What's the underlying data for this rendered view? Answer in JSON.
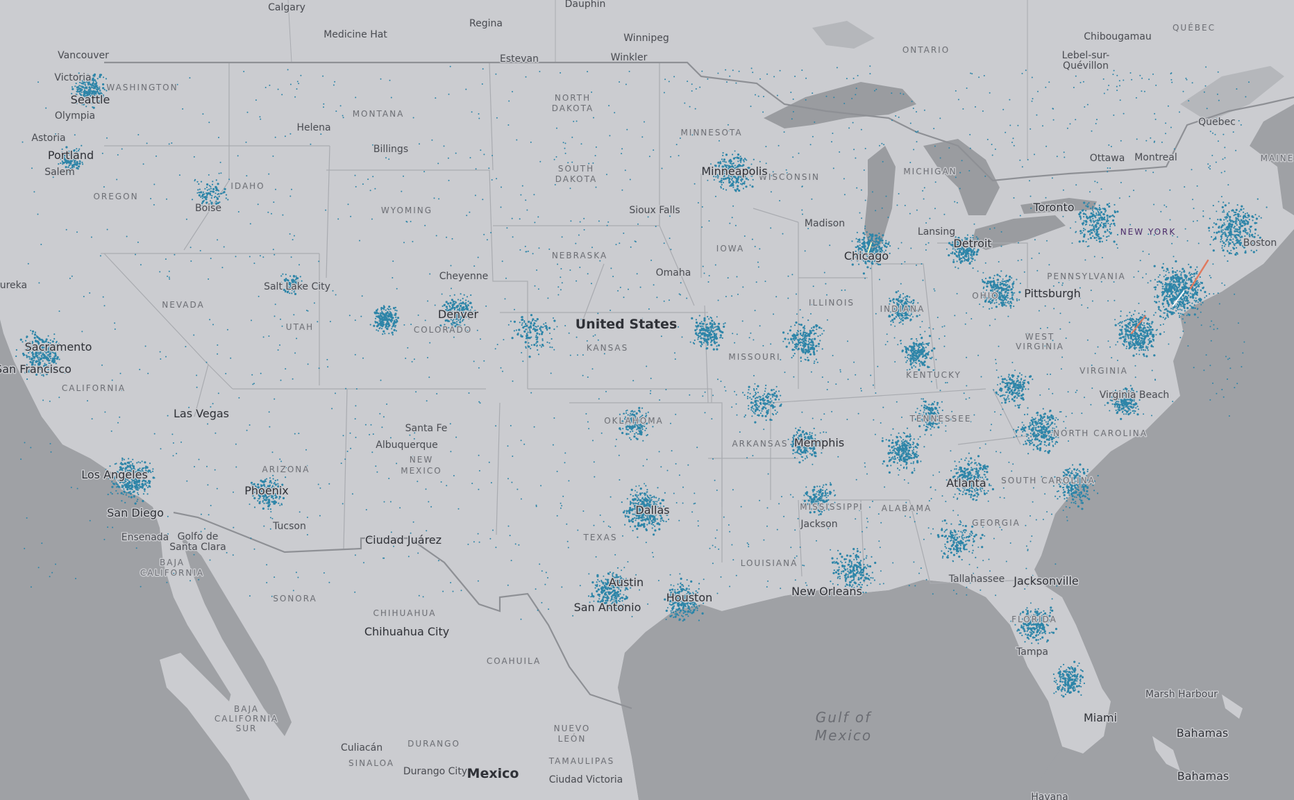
{
  "map": {
    "colors": {
      "land": "#cbccd0",
      "water": "#9fa1a5",
      "lakes": "#9a9ca0",
      "state_border": "#a9abb0",
      "national_border": "#8e9095",
      "dots": "#2e85a8",
      "dots_bright": "#54c6e6"
    },
    "labels": {
      "countries": [
        "United States",
        "Mexico"
      ],
      "seas": [
        "Gulf of",
        "Mexico"
      ],
      "states": [
        "WASHINGTON",
        "MONTANA",
        "NORTH",
        "DAKOTA",
        "MINNESOTA",
        "SOUTH",
        "DAKOTA",
        "WISCONSIN",
        "MICHIGAN",
        "OREGON",
        "IDAHO",
        "WYOMING",
        "NEBRASKA",
        "IOWA",
        "NEVADA",
        "UTAH",
        "COLORADO",
        "KANSAS",
        "MISSOURI",
        "ILLINOIS",
        "INDIANA",
        "OHIO",
        "PENNSYLVANIA",
        "NEW YORK",
        "CALIFORNIA",
        "ARIZONA",
        "NEW",
        "MEXICO",
        "OKLAHOMA",
        "ARKANSAS",
        "TEXAS",
        "LOUISIANA",
        "MISSISSIPPI",
        "ALABAMA",
        "GEORGIA",
        "TENNESSEE",
        "KENTUCKY",
        "WEST",
        "VIRGINIA",
        "VIRGINIA",
        "NORTH CAROLINA",
        "SOUTH CAROLINA",
        "FLORIDA",
        "MAINE",
        "ONTARIO",
        "QUÉBEC",
        "SONORA",
        "CHIHUAHUA",
        "COAHUILA",
        "DURANGO",
        "NUEVO",
        "LEÓN",
        "TAMAULIPAS",
        "BAJA",
        "CALIFORNIA",
        "BAJA",
        "CALIFORNIA",
        "SUR",
        "SINALOA"
      ],
      "cities": [
        "Calgary",
        "Dauphin",
        "Regina",
        "Medicine Hat",
        "Winnipeg",
        "Estevan",
        "Winkler",
        "Chibougamau",
        "Lebel-sur-",
        "Quévillon",
        "Quebec",
        "Ottawa",
        "Montreal",
        "Toronto",
        "Vancouver",
        "Victoria",
        "Seattle",
        "Olympia",
        "Astoria",
        "Portland",
        "Salem",
        "Helena",
        "Billings",
        "Boise",
        "Minneapolis",
        "Sioux Falls",
        "Madison",
        "Lansing",
        "Detroit",
        "Chicago",
        "Omaha",
        "Cheyenne",
        "Salt Lake City",
        "Denver",
        "Eureka",
        "Sacramento",
        "San Francisco",
        "Las Vegas",
        "Los Angeles",
        "San Diego",
        "Ensenada",
        "Golfo de",
        "Santa Clara",
        "Phoenix",
        "Tucson",
        "Santa Fe",
        "Albuquerque",
        "Ciudad Juárez",
        "Chihuahua City",
        "Pittsburgh",
        "Memphis",
        "Dallas",
        "Austin",
        "San Antonio",
        "Houston",
        "Jackson",
        "New Orleans",
        "Atlanta",
        "Tallahassee",
        "Jacksonville",
        "Tampa",
        "Miami",
        "Virginia Beach",
        "Boston",
        "Marsh Harbour",
        "Bahamas",
        "Havana",
        "Culiacán",
        "Durango City",
        "Ciudad Victoria"
      ]
    }
  }
}
